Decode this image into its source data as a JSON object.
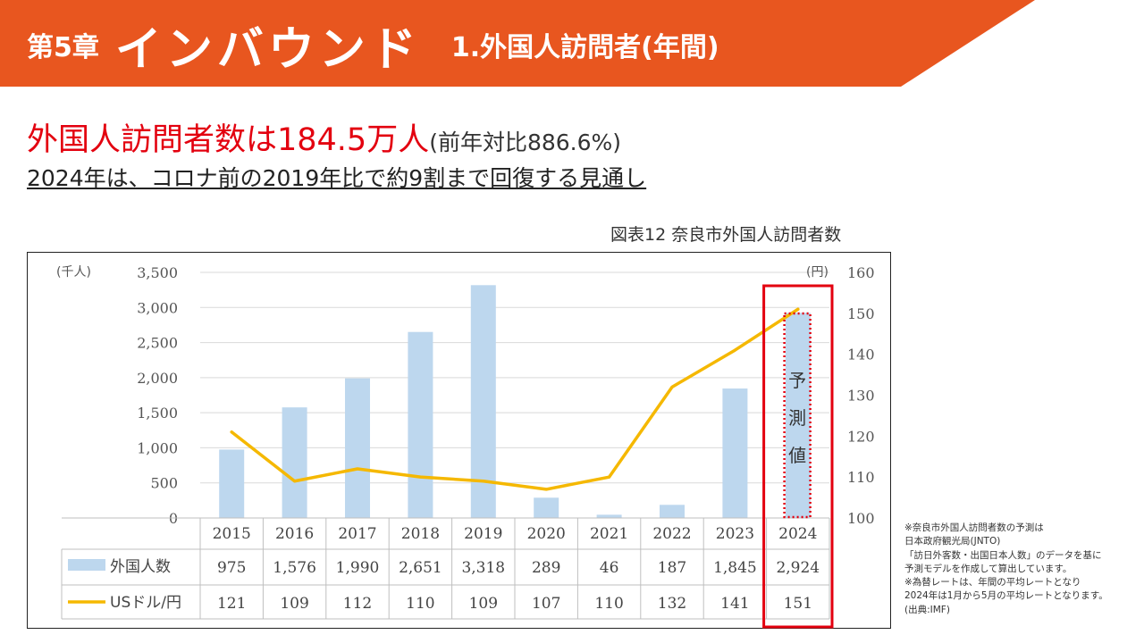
{
  "header": {
    "chapter": "第5章",
    "title": "インバウンド",
    "subtitle": "1.外国人訪問者(年間)",
    "color": "#e8561f"
  },
  "headline": {
    "main": "外国人訪問者数は184.5万人",
    "note": "(前年対比886.6%)",
    "sub": "2024年は、コロナ前の2019年比で約9割まで回復する見通し"
  },
  "figure_title": "図表12 奈良市外国人訪問者数",
  "chart_data": {
    "type": "bar",
    "categories": [
      "2015",
      "2016",
      "2017",
      "2018",
      "2019",
      "2020",
      "2021",
      "2022",
      "2023",
      "2024"
    ],
    "series": [
      {
        "name": "外国人数",
        "type": "bar",
        "axis": "left",
        "color": "#bdd7ee",
        "values": [
          975,
          1576,
          1990,
          2651,
          3318,
          289,
          46,
          187,
          1845,
          2924
        ]
      },
      {
        "name": "USドル/円",
        "type": "line",
        "axis": "right",
        "color": "#f5b800",
        "values": [
          121,
          109,
          112,
          110,
          109,
          107,
          110,
          132,
          141,
          151
        ]
      }
    ],
    "y_left": {
      "label": "(千人)",
      "min": 0,
      "max": 3500,
      "ticks": [
        0,
        500,
        1000,
        1500,
        2000,
        2500,
        3000,
        3500
      ],
      "tick_labels": [
        "0",
        "500",
        "1,000",
        "1,500",
        "2,000",
        "2,500",
        "3,000",
        "3,500"
      ]
    },
    "y_right": {
      "label": "(円)",
      "min": 100,
      "max": 160,
      "ticks": [
        100,
        110,
        120,
        130,
        140,
        150,
        160
      ],
      "tick_labels": [
        "100",
        "110",
        "120",
        "130",
        "140",
        "150",
        "160"
      ]
    },
    "table": {
      "rows": [
        {
          "name": "外国人数",
          "cells": [
            "975",
            "1,576",
            "1,990",
            "2,651",
            "3,318",
            "289",
            "46",
            "187",
            "1,845",
            "2,924"
          ]
        },
        {
          "name": "USドル/円",
          "cells": [
            "121",
            "109",
            "112",
            "110",
            "109",
            "107",
            "110",
            "132",
            "141",
            "151"
          ]
        }
      ]
    },
    "annotation": {
      "text": "予測値",
      "category": "2024",
      "highlight_color": "#e3000f"
    },
    "grid": true,
    "legend": "table"
  },
  "footnote": [
    "※奈良市外国人訪問者数の予測は",
    "日本政府観光局(JNTO)",
    "「訪日外客数・出国日本人数」のデータを基に",
    "予測モデルを作成して算出しています。",
    "※為替レートは、年間の平均レートとなり",
    "2024年は1月から5月の平均レートとなります。",
    "(出典:IMF)"
  ]
}
